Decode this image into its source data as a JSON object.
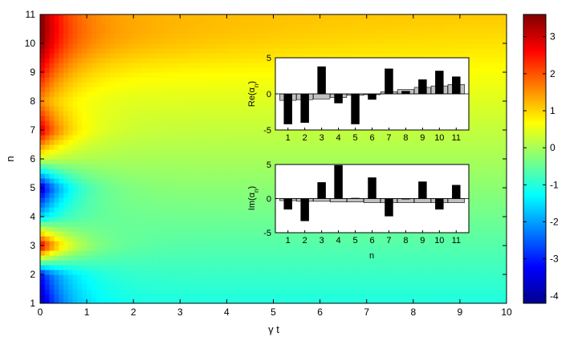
{
  "chart_data": [
    {
      "type": "heatmap",
      "title": "",
      "xlabel": "γ t",
      "ylabel": "n",
      "xlim": [
        0,
        10
      ],
      "ylim": [
        1,
        11
      ],
      "xticks": [
        "0",
        "1",
        "2",
        "3",
        "4",
        "5",
        "6",
        "7",
        "8",
        "9",
        "10"
      ],
      "yticks": [
        "1",
        "2",
        "3",
        "4",
        "5",
        "6",
        "7",
        "8",
        "9",
        "10",
        "11"
      ],
      "colorbar": {
        "min": -4.2,
        "max": 3.6,
        "ticks": [
          "3",
          "2",
          "1",
          "0",
          "-1",
          "-2",
          "-3",
          "-4"
        ],
        "colormap": "jet"
      },
      "grid": false
    },
    {
      "type": "bar",
      "ylabel_prefix": "Re(α",
      "ylabel_sub": "n",
      "ylabel_suffix": ")",
      "categories": [
        "1",
        "2",
        "3",
        "4",
        "5",
        "6",
        "7",
        "8",
        "9",
        "10",
        "11"
      ],
      "ylim": [
        -5,
        5
      ],
      "yticks": [
        "5",
        "0",
        "-5"
      ],
      "series": [
        {
          "values": [
            -4.2,
            -4.0,
            3.8,
            -1.3,
            -4.2,
            -0.8,
            3.5,
            0.4,
            2.0,
            3.2,
            2.4
          ],
          "color": "#000000"
        },
        {
          "values": [
            -0.9,
            -0.8,
            -0.7,
            -0.5,
            -0.2,
            0.0,
            0.3,
            0.6,
            0.9,
            1.1,
            1.3
          ],
          "color": "#c0c0c0"
        }
      ]
    },
    {
      "type": "bar",
      "ylabel_prefix": "Im(α",
      "ylabel_sub": "n",
      "ylabel_suffix": ")",
      "xlabel": "n",
      "categories": [
        "1",
        "2",
        "3",
        "4",
        "5",
        "6",
        "7",
        "8",
        "9",
        "10",
        "11"
      ],
      "ylim": [
        -5,
        5
      ],
      "yticks": [
        "5",
        "0",
        "-5"
      ],
      "series": [
        {
          "values": [
            -1.6,
            -3.3,
            2.4,
            4.9,
            0.1,
            3.1,
            -2.6,
            0.0,
            2.5,
            -1.6,
            2.0
          ],
          "color": "#000000"
        },
        {
          "values": [
            -0.3,
            -0.4,
            -0.4,
            -0.5,
            -0.5,
            -0.6,
            -0.6,
            -0.6,
            -0.6,
            -0.6,
            -0.6
          ],
          "color": "#c0c0c0"
        }
      ]
    }
  ]
}
